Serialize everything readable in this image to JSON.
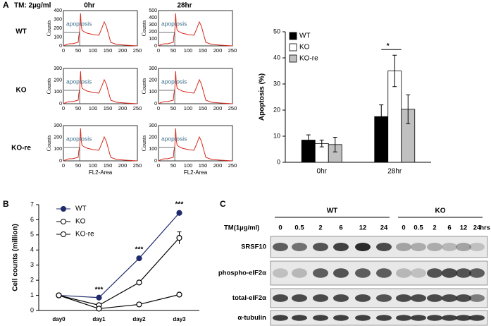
{
  "panel_a": {
    "label": "A",
    "treatment": "TM: 2µg/ml",
    "columns": [
      "0hr",
      "28hr"
    ],
    "rows": [
      "WT",
      "KO",
      "KO-re"
    ],
    "xlabel": "FL2-Area",
    "xticks": [
      0,
      50,
      100,
      150,
      200,
      250
    ],
    "histograms": [
      {
        "ylabel": "Counts",
        "yticks": [
          400,
          300,
          200,
          100,
          0
        ],
        "gate": "apoptosis"
      },
      {
        "ylabel": "Counts",
        "yticks": [
          500,
          400,
          300,
          200,
          100,
          0
        ],
        "gate": "apoptosis"
      },
      {
        "ylabel": "Counts",
        "yticks": [
          300,
          200,
          100,
          0
        ],
        "gate": "apoptosis"
      },
      {
        "ylabel": "Counts",
        "yticks": [
          300,
          200,
          100,
          0
        ],
        "gate": "apoptosis"
      },
      {
        "ylabel": "Counts",
        "yticks": [
          300,
          200,
          100,
          0
        ],
        "gate": "apoptosis"
      },
      {
        "ylabel": "Counts",
        "yticks": [
          300,
          200,
          100,
          0
        ],
        "gate": "apoptosis"
      }
    ]
  },
  "panel_b": {
    "label": "B"
  },
  "panel_c": {
    "label": "C",
    "groups": [
      "WT",
      "KO"
    ],
    "treatment": "TM(1µg/ml)",
    "lanes": [
      "0",
      "0.5",
      "2",
      "6",
      "12",
      "24"
    ],
    "unit": "hrs",
    "proteins": [
      "SRSF10",
      "phospho-eIF2α",
      "total-eIF2α",
      "α-tubulin"
    ]
  },
  "chart_data": [
    {
      "type": "bar",
      "ylabel": "Apoptosis (%)",
      "categories": [
        "0hr",
        "28hr"
      ],
      "series": [
        {
          "name": "WT",
          "color": "#000000",
          "values": [
            8.5,
            17.5
          ],
          "errors": [
            2,
            4.5
          ]
        },
        {
          "name": "KO",
          "color": "#ffffff",
          "values": [
            7.2,
            35
          ],
          "errors": [
            1.3,
            6
          ]
        },
        {
          "name": "KO-re",
          "color": "#c0c0c0",
          "values": [
            6.8,
            20.3
          ],
          "errors": [
            2.8,
            5.5
          ]
        }
      ],
      "ylim": [
        0,
        50
      ],
      "yticks": [
        0,
        10,
        20,
        30,
        40,
        50
      ],
      "annotations": [
        "*"
      ],
      "legend": "top-left"
    },
    {
      "type": "line",
      "ylabel": "Cell counts  (million)",
      "categories": [
        "day0",
        "day1",
        "day2",
        "day3"
      ],
      "series": [
        {
          "name": "WT",
          "color": "#1f2a6b",
          "marker_fill": "#1f2a6b",
          "values": [
            1,
            0.85,
            3.45,
            6.45
          ],
          "errors": [
            0,
            0.05,
            0.1,
            0.1
          ]
        },
        {
          "name": "KO",
          "color": "#000000",
          "marker_fill": "#ffffff",
          "values": [
            1,
            0.35,
            1.85,
            4.8
          ],
          "errors": [
            0,
            0.05,
            0.1,
            0.4
          ]
        },
        {
          "name": "KO-re",
          "color": "#000000",
          "marker_fill": "#ffffff",
          "values": [
            1,
            0.12,
            0.4,
            1.05
          ],
          "errors": [
            0,
            0.02,
            0.05,
            0.05
          ]
        }
      ],
      "ylim": [
        0,
        7
      ],
      "yticks": [
        0,
        1,
        2,
        3,
        4,
        5,
        6,
        7
      ],
      "annotations": [
        "***",
        "***",
        "***"
      ],
      "legend": "top-left"
    }
  ]
}
